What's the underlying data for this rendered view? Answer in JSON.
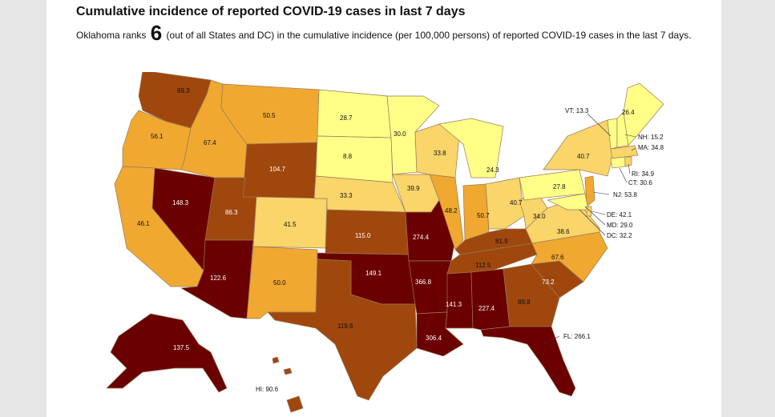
{
  "page": {
    "title": "Cumulative incidence of reported COVID-19 cases in last 7 days",
    "summary": {
      "prefix": "Oklahoma ranks",
      "rank": "6",
      "suffix": "(out of all States and DC) in the cumulative incidence (per 100,000 persons) of reported COVID-19 cases in the last 7 days."
    }
  },
  "colors": {
    "lowest": "#ffff88",
    "low": "#f9d56a",
    "medium": "#f0a830",
    "high": "#a0470e",
    "highest": "#6b0000"
  },
  "map_data": {
    "states": [
      {
        "name": "WA",
        "value": "89.3"
      },
      {
        "name": "OR",
        "value": "56.1"
      },
      {
        "name": "CA",
        "value": "46.1"
      },
      {
        "name": "NV",
        "value": "148.3"
      },
      {
        "name": "ID",
        "value": "67.4"
      },
      {
        "name": "MT",
        "value": "50.5"
      },
      {
        "name": "WY",
        "value": "104.7"
      },
      {
        "name": "UT",
        "value": "86.3"
      },
      {
        "name": "AZ",
        "value": "122.6"
      },
      {
        "name": "CO",
        "value": "41.5"
      },
      {
        "name": "NM",
        "value": "50.0"
      },
      {
        "name": "ND",
        "value": "28.7"
      },
      {
        "name": "SD",
        "value": "8.8"
      },
      {
        "name": "NE",
        "value": "33.3"
      },
      {
        "name": "KS",
        "value": "115.0"
      },
      {
        "name": "OK",
        "value": "149.1"
      },
      {
        "name": "TX",
        "value": "119.6"
      },
      {
        "name": "MN",
        "value": "30.0"
      },
      {
        "name": "IA",
        "value": "39.9"
      },
      {
        "name": "MO",
        "value": "274.4"
      },
      {
        "name": "AR",
        "value": "366.8"
      },
      {
        "name": "LA",
        "value": "306.4"
      },
      {
        "name": "WI",
        "value": "33.8"
      },
      {
        "name": "IL",
        "value": "48.2"
      },
      {
        "name": "MI",
        "value": "24.3"
      },
      {
        "name": "IN",
        "value": "50.7"
      },
      {
        "name": "OH",
        "value": "40.7"
      },
      {
        "name": "KY",
        "value": "81.9"
      },
      {
        "name": "TN",
        "value": "112.5"
      },
      {
        "name": "MS",
        "value": "141.3"
      },
      {
        "name": "AL",
        "value": "227.4"
      },
      {
        "name": "GA",
        "value": "89.8"
      },
      {
        "name": "SC",
        "value": "73.2"
      },
      {
        "name": "NC",
        "value": "67.6"
      },
      {
        "name": "VA",
        "value": "38.6"
      },
      {
        "name": "WV",
        "value": "34.0"
      },
      {
        "name": "PA",
        "value": "27.8"
      },
      {
        "name": "NY",
        "value": "40.7"
      },
      {
        "name": "ME",
        "value": "26.4"
      },
      {
        "name": "AK",
        "value": "137.5"
      }
    ],
    "callouts": [
      {
        "name": "VT",
        "text": "VT: 13.3"
      },
      {
        "name": "NH",
        "text": "NH: 15.2"
      },
      {
        "name": "MA",
        "text": "MA: 34.8"
      },
      {
        "name": "RI",
        "text": "RI: 34.9"
      },
      {
        "name": "CT",
        "text": "CT: 30.6"
      },
      {
        "name": "NJ",
        "text": "NJ: 53.8"
      },
      {
        "name": "DE",
        "text": "DE: 42.1"
      },
      {
        "name": "MD",
        "text": "MD: 29.0"
      },
      {
        "name": "DC",
        "text": "DC: 32.2"
      },
      {
        "name": "FL",
        "text": "FL: 266.1"
      },
      {
        "name": "HI",
        "text": "HI: 90.6"
      }
    ]
  }
}
